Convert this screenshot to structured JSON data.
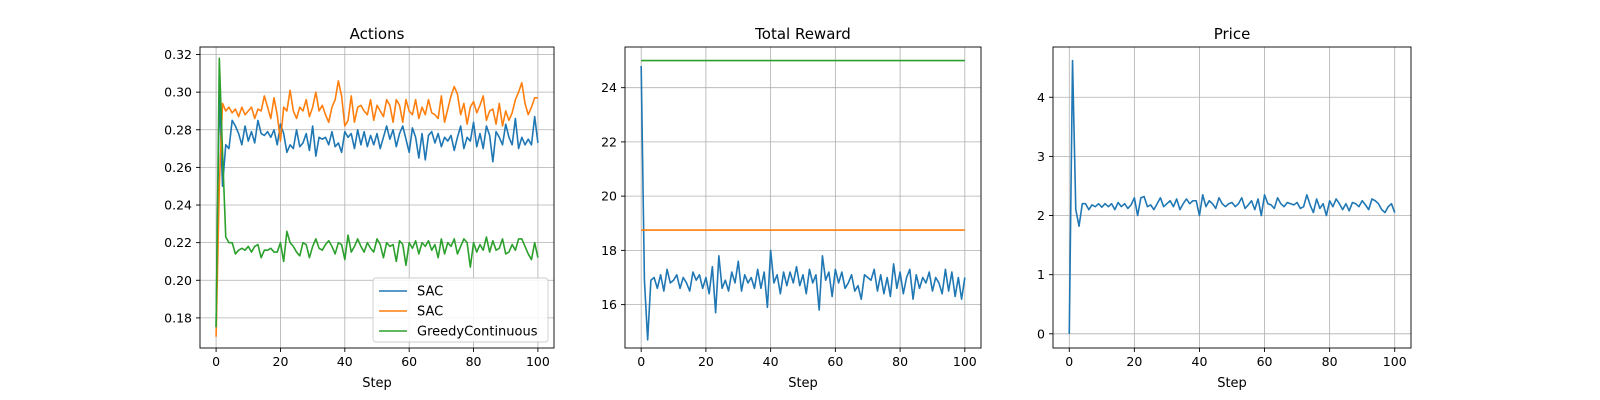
{
  "chart_data": [
    {
      "type": "line",
      "title": "Actions",
      "xlabel": "Step",
      "ylabel": "",
      "xlim": [
        -5,
        105
      ],
      "ylim": [
        0.164,
        0.324
      ],
      "xticks": [
        0,
        20,
        40,
        60,
        80,
        100
      ],
      "yticks": [
        0.18,
        0.2,
        0.22,
        0.24,
        0.26,
        0.28,
        0.3,
        0.32
      ],
      "tick_decimals": 2,
      "grid": true,
      "legend": "lower-right",
      "series": [
        {
          "name": "SAC",
          "color": "#1f77b4",
          "x_start": 0,
          "values": [
            0.175,
            0.3,
            0.25,
            0.272,
            0.27,
            0.285,
            0.282,
            0.278,
            0.272,
            0.282,
            0.274,
            0.279,
            0.273,
            0.285,
            0.278,
            0.277,
            0.279,
            0.276,
            0.28,
            0.272,
            0.283,
            0.278,
            0.268,
            0.272,
            0.27,
            0.28,
            0.271,
            0.273,
            0.278,
            0.269,
            0.282,
            0.266,
            0.276,
            0.275,
            0.276,
            0.272,
            0.279,
            0.271,
            0.273,
            0.268,
            0.279,
            0.276,
            0.278,
            0.27,
            0.28,
            0.272,
            0.279,
            0.271,
            0.277,
            0.272,
            0.278,
            0.27,
            0.276,
            0.282,
            0.275,
            0.28,
            0.271,
            0.278,
            0.282,
            0.275,
            0.268,
            0.281,
            0.276,
            0.265,
            0.278,
            0.264,
            0.277,
            0.279,
            0.273,
            0.278,
            0.271,
            0.276,
            0.274,
            0.277,
            0.269,
            0.276,
            0.282,
            0.27,
            0.276,
            0.274,
            0.284,
            0.271,
            0.278,
            0.27,
            0.282,
            0.277,
            0.263,
            0.279,
            0.276,
            0.272,
            0.283,
            0.276,
            0.272,
            0.286,
            0.27,
            0.276,
            0.272,
            0.275,
            0.272,
            0.287,
            0.273
          ]
        },
        {
          "name": "SAC",
          "color": "#ff7f0e",
          "x_start": 0,
          "values": [
            0.17,
            0.25,
            0.294,
            0.29,
            0.292,
            0.289,
            0.291,
            0.287,
            0.292,
            0.288,
            0.29,
            0.292,
            0.286,
            0.291,
            0.29,
            0.298,
            0.292,
            0.286,
            0.297,
            0.288,
            0.274,
            0.292,
            0.29,
            0.301,
            0.29,
            0.286,
            0.292,
            0.29,
            0.296,
            0.287,
            0.292,
            0.3,
            0.29,
            0.293,
            0.288,
            0.284,
            0.292,
            0.296,
            0.306,
            0.298,
            0.282,
            0.285,
            0.298,
            0.284,
            0.292,
            0.293,
            0.29,
            0.288,
            0.296,
            0.285,
            0.293,
            0.29,
            0.287,
            0.296,
            0.293,
            0.284,
            0.296,
            0.293,
            0.284,
            0.296,
            0.29,
            0.288,
            0.296,
            0.286,
            0.292,
            0.288,
            0.296,
            0.289,
            0.288,
            0.286,
            0.298,
            0.284,
            0.291,
            0.298,
            0.303,
            0.299,
            0.288,
            0.294,
            0.283,
            0.292,
            0.295,
            0.289,
            0.293,
            0.298,
            0.285,
            0.29,
            0.291,
            0.283,
            0.294,
            0.282,
            0.29,
            0.285,
            0.289,
            0.296,
            0.3,
            0.305,
            0.294,
            0.288,
            0.292,
            0.297,
            0.297
          ]
        },
        {
          "name": "GreedyContinuous",
          "color": "#2ca02c",
          "x_start": 0,
          "values": [
            0.175,
            0.318,
            0.268,
            0.223,
            0.22,
            0.22,
            0.214,
            0.216,
            0.217,
            0.216,
            0.218,
            0.215,
            0.218,
            0.219,
            0.212,
            0.216,
            0.216,
            0.217,
            0.215,
            0.215,
            0.22,
            0.21,
            0.226,
            0.22,
            0.218,
            0.215,
            0.213,
            0.22,
            0.219,
            0.212,
            0.218,
            0.222,
            0.217,
            0.216,
            0.219,
            0.221,
            0.218,
            0.214,
            0.22,
            0.219,
            0.211,
            0.224,
            0.215,
            0.218,
            0.222,
            0.218,
            0.215,
            0.22,
            0.217,
            0.215,
            0.222,
            0.219,
            0.212,
            0.22,
            0.218,
            0.219,
            0.21,
            0.221,
            0.219,
            0.208,
            0.22,
            0.217,
            0.221,
            0.214,
            0.22,
            0.218,
            0.221,
            0.216,
            0.219,
            0.212,
            0.222,
            0.214,
            0.22,
            0.218,
            0.222,
            0.214,
            0.218,
            0.222,
            0.22,
            0.207,
            0.22,
            0.215,
            0.219,
            0.216,
            0.223,
            0.215,
            0.221,
            0.216,
            0.217,
            0.222,
            0.214,
            0.215,
            0.219,
            0.216,
            0.222,
            0.222,
            0.218,
            0.214,
            0.211,
            0.22,
            0.212
          ]
        }
      ]
    },
    {
      "type": "line",
      "title": "Total Reward",
      "xlabel": "Step",
      "ylabel": "",
      "xlim": [
        -5,
        105
      ],
      "ylim": [
        14.4,
        25.5
      ],
      "xticks": [
        0,
        20,
        40,
        60,
        80,
        100
      ],
      "yticks": [
        16,
        18,
        20,
        22,
        24
      ],
      "tick_decimals": 0,
      "grid": true,
      "legend": "none",
      "series": [
        {
          "name": "",
          "color": "#1f77b4",
          "x_start": 0,
          "values": [
            24.8,
            16.9,
            14.7,
            16.9,
            17.0,
            16.6,
            17.1,
            16.5,
            17.3,
            16.8,
            16.9,
            17.1,
            16.6,
            17.0,
            16.8,
            16.5,
            17.2,
            16.9,
            17.1,
            16.6,
            17.0,
            16.4,
            17.4,
            15.7,
            17.8,
            16.6,
            16.9,
            16.5,
            17.2,
            16.8,
            17.6,
            16.5,
            17.1,
            16.8,
            17.0,
            16.6,
            17.3,
            16.6,
            17.2,
            15.9,
            18.0,
            16.8,
            17.1,
            16.4,
            17.2,
            16.7,
            17.2,
            16.8,
            17.4,
            16.7,
            17.1,
            16.4,
            17.3,
            16.8,
            17.1,
            15.8,
            17.8,
            16.9,
            17.2,
            16.3,
            17.3,
            16.8,
            17.2,
            16.6,
            16.8,
            17.1,
            16.5,
            16.7,
            16.2,
            17.1,
            17.0,
            16.9,
            17.3,
            16.5,
            17.1,
            16.4,
            17.0,
            16.3,
            17.5,
            16.6,
            17.2,
            16.4,
            17.0,
            17.3,
            16.2,
            17.1,
            16.6,
            17.0,
            16.8,
            17.2,
            16.5,
            17.0,
            16.8,
            16.4,
            17.3,
            16.5,
            17.2,
            16.3,
            17.0,
            16.2,
            17.0
          ]
        },
        {
          "name": "",
          "color": "#ff7f0e",
          "x_start": 0,
          "values": [
            18.75,
            18.75
          ]
        },
        {
          "name": "",
          "color": "#2ca02c",
          "x_start": 0,
          "values": [
            25.0,
            25.0
          ]
        }
      ]
    },
    {
      "type": "line",
      "title": "Price",
      "xlabel": "Step",
      "ylabel": "",
      "xlim": [
        -5,
        105
      ],
      "ylim": [
        -0.24,
        4.85
      ],
      "xticks": [
        0,
        20,
        40,
        60,
        80,
        100
      ],
      "yticks": [
        0,
        1,
        2,
        3,
        4
      ],
      "tick_decimals": 0,
      "grid": true,
      "legend": "none",
      "series": [
        {
          "name": "",
          "color": "#1f77b4",
          "x_start": 0,
          "values": [
            0.0,
            4.62,
            2.1,
            1.82,
            2.2,
            2.2,
            2.1,
            2.18,
            2.15,
            2.2,
            2.14,
            2.2,
            2.15,
            2.2,
            2.1,
            2.22,
            2.15,
            2.2,
            2.12,
            2.18,
            2.3,
            2.0,
            2.3,
            2.32,
            2.15,
            2.18,
            2.1,
            2.2,
            2.3,
            2.15,
            2.2,
            2.25,
            2.15,
            2.28,
            2.1,
            2.2,
            2.28,
            2.2,
            2.25,
            2.25,
            2.0,
            2.35,
            2.15,
            2.25,
            2.2,
            2.12,
            2.3,
            2.2,
            2.15,
            2.2,
            2.22,
            2.15,
            2.2,
            2.3,
            2.12,
            2.18,
            2.25,
            2.1,
            2.28,
            2.0,
            2.35,
            2.2,
            2.18,
            2.12,
            2.3,
            2.2,
            2.15,
            2.22,
            2.2,
            2.18,
            2.22,
            2.12,
            2.15,
            2.35,
            2.18,
            2.05,
            2.28,
            2.12,
            2.2,
            2.0,
            2.25,
            2.15,
            2.28,
            2.2,
            2.1,
            2.2,
            2.08,
            2.22,
            2.2,
            2.15,
            2.25,
            2.18,
            2.1,
            2.28,
            2.25,
            2.2,
            2.1,
            2.05,
            2.15,
            2.2,
            2.05
          ]
        }
      ]
    }
  ]
}
